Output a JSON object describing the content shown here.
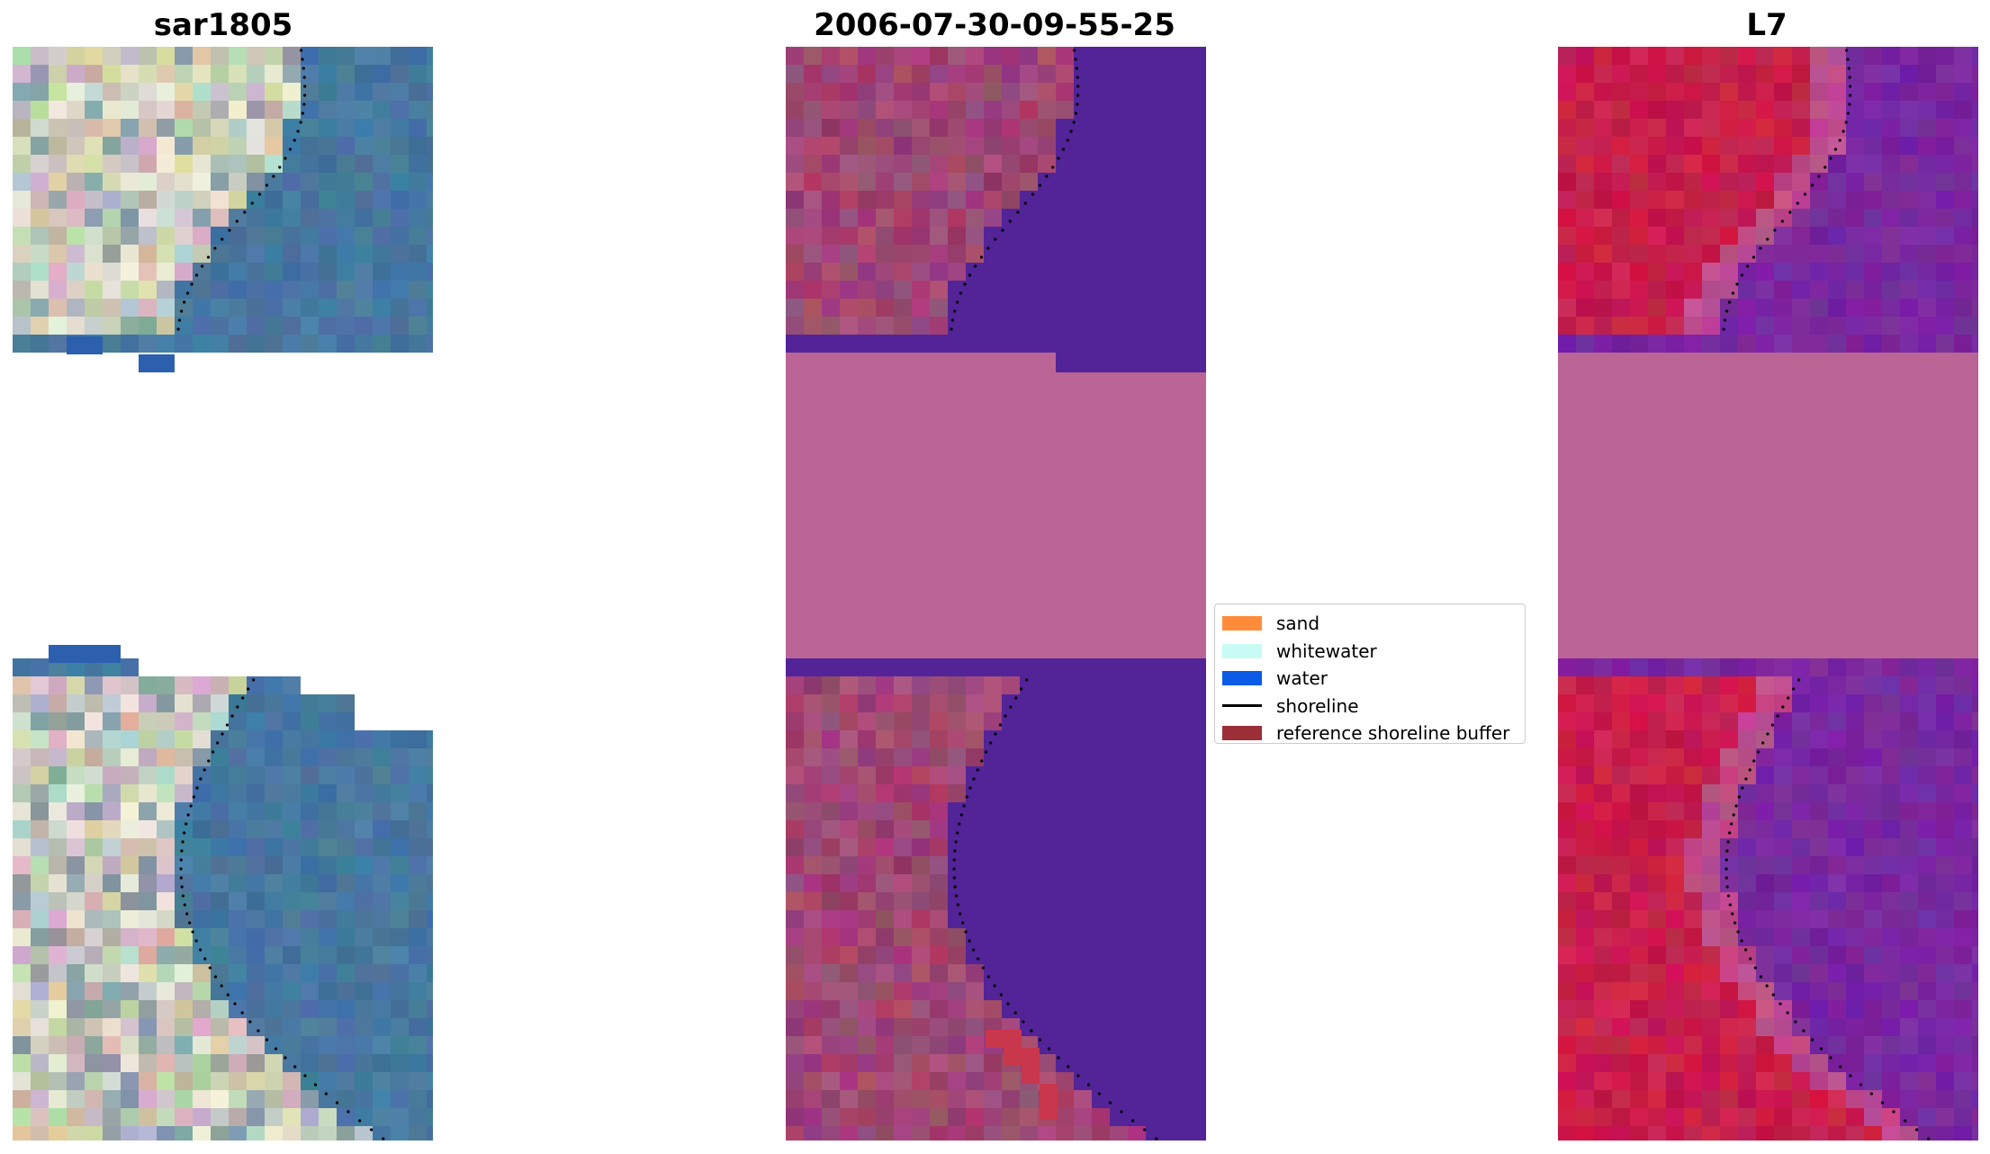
{
  "panels": [
    {
      "title": "sar1805"
    },
    {
      "title": "2006-07-30-09-55-25"
    },
    {
      "title": "L7"
    }
  ],
  "legend": {
    "items": [
      {
        "label": "sand",
        "color": "#ff8c3a"
      },
      {
        "label": "whitewater",
        "color": "#c8fbf5"
      },
      {
        "label": "water",
        "color": "#0b5be6"
      },
      {
        "label": "shoreline",
        "color": "#000000"
      },
      {
        "label": "reference shoreline buffer",
        "color": "#9a2f38"
      }
    ]
  }
}
